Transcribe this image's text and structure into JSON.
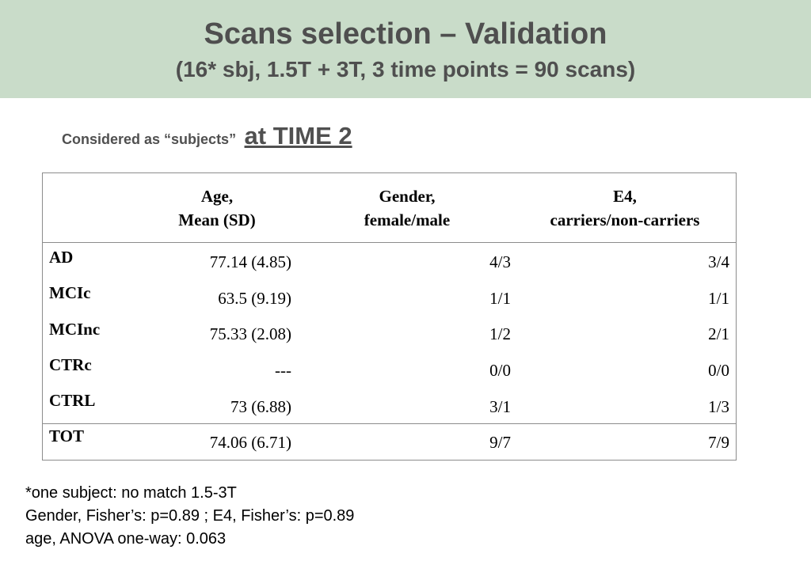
{
  "header": {
    "title": "Scans selection – Validation",
    "subtitle": "(16* sbj, 1.5T + 3T, 3 time points = 90 scans)"
  },
  "considered": {
    "label": "Considered as “subjects”",
    "time": "at TIME 2"
  },
  "table": {
    "columns": [
      {
        "line1": "Age,",
        "line2": "Mean (SD)"
      },
      {
        "line1": "Gender,",
        "line2": "female/male"
      },
      {
        "line1": "E4,",
        "line2": "carriers/non-carriers"
      }
    ],
    "rows": [
      {
        "group": "AD",
        "age": "77.14 (4.85)",
        "gender": "4/3",
        "e4": "3/4"
      },
      {
        "group": "MCIc",
        "age": "63.5 (9.19)",
        "gender": "1/1",
        "e4": "1/1"
      },
      {
        "group": "MCInc",
        "age": "75.33 (2.08)",
        "gender": "1/2",
        "e4": "2/1"
      },
      {
        "group": "CTRc",
        "age": "---",
        "gender": "0/0",
        "e4": "0/0"
      },
      {
        "group": "CTRL",
        "age": "73 (6.88)",
        "gender": "3/1",
        "e4": "1/3"
      }
    ],
    "total": {
      "group": "TOT",
      "age": "74.06 (6.71)",
      "gender": "9/7",
      "e4": "7/9"
    }
  },
  "notes": [
    "*one subject: no match 1.5-3T",
    "Gender, Fisher’s: p=0.89 ; E4, Fisher’s: p=0.89",
    "age, ANOVA one-way: 0.063"
  ]
}
